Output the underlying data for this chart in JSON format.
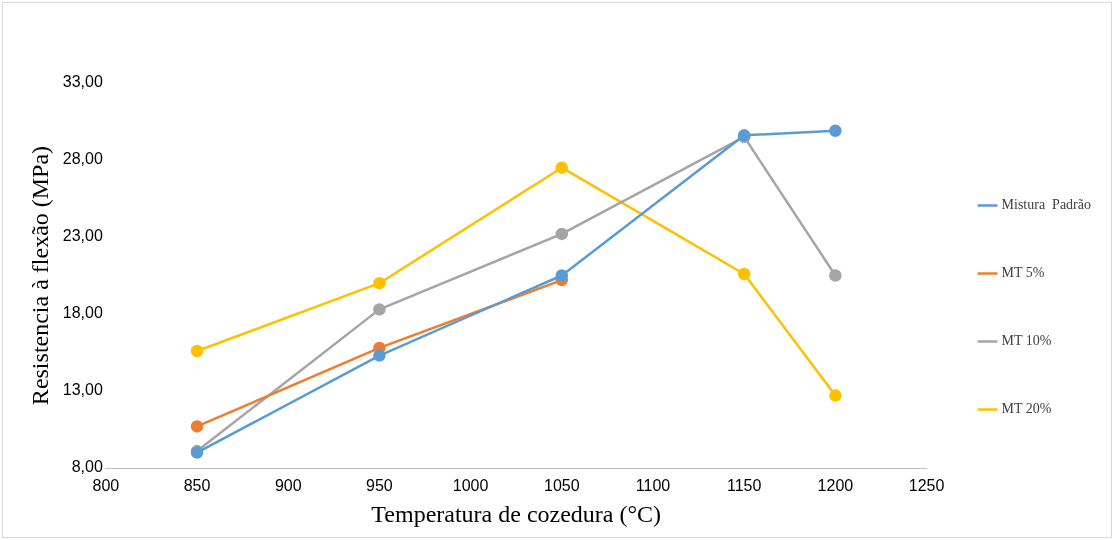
{
  "chart_data": {
    "type": "line",
    "xlabel": "Temperatura de cozedura (°C)",
    "ylabel": "Resistencia à flexão (MPa)",
    "x": [
      850,
      950,
      1050,
      1150,
      1200
    ],
    "series": [
      {
        "name": "Mistura  Padrão",
        "color": "#5b9bd5",
        "values": [
          9.0,
          15.3,
          20.5,
          29.6,
          29.9
        ]
      },
      {
        "name": "MT 5%",
        "color": "#ed7d31",
        "values": [
          10.7,
          15.8,
          20.2,
          null,
          null
        ]
      },
      {
        "name": "MT 10%",
        "color": "#a5a5a5",
        "values": [
          9.1,
          18.3,
          23.2,
          29.5,
          20.5
        ]
      },
      {
        "name": "MT 20%",
        "color": "#ffc000",
        "values": [
          15.6,
          20.0,
          27.5,
          20.6,
          12.7
        ]
      }
    ],
    "xlim": [
      800,
      1250
    ],
    "xticks": [
      800,
      850,
      900,
      950,
      1000,
      1050,
      1100,
      1150,
      1200,
      1250
    ],
    "ylim": [
      8,
      33
    ],
    "yticks": [
      {
        "value": 8,
        "label": "8,00"
      },
      {
        "value": 13,
        "label": "13,00"
      },
      {
        "value": 18,
        "label": "18,00"
      },
      {
        "value": 23,
        "label": "23,00"
      },
      {
        "value": 28,
        "label": "28,00"
      },
      {
        "value": 33,
        "label": "33,00"
      }
    ],
    "grid": false,
    "legend": "right",
    "marker": "circle",
    "line_style": "solid"
  }
}
